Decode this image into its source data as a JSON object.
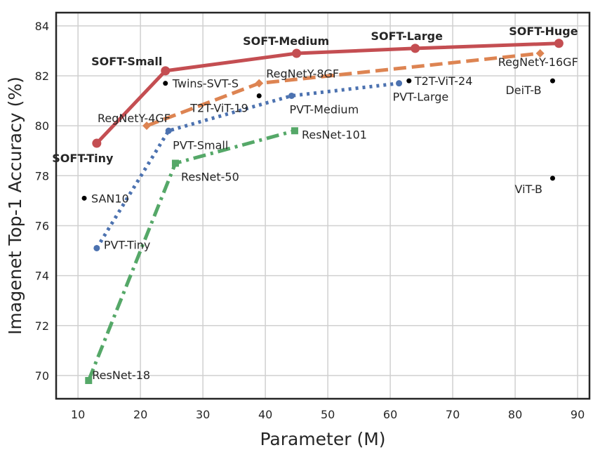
{
  "chart_data": {
    "type": "line",
    "title": "",
    "xlabel": "Parameter (M)",
    "ylabel": "Imagenet Top-1 Accuracy (%)",
    "xlim": [
      6.5,
      91.9
    ],
    "ylim": [
      69.07,
      84.53
    ],
    "xticks": [
      10,
      20,
      30,
      40,
      50,
      60,
      70,
      80,
      90
    ],
    "yticks": [
      70,
      72,
      74,
      76,
      78,
      80,
      82,
      84
    ],
    "grid": true,
    "legend": "none",
    "series": [
      {
        "color": "#c44e52",
        "style": "solid",
        "marker": "circle",
        "points": [
          {
            "x": 13,
            "y": 79.3,
            "label": "SOFT-Tiny"
          },
          {
            "x": 24,
            "y": 82.2,
            "label": "SOFT-Small"
          },
          {
            "x": 45,
            "y": 82.9,
            "label": "SOFT-Medium"
          },
          {
            "x": 64,
            "y": 83.1,
            "label": "SOFT-Large"
          },
          {
            "x": 87,
            "y": 83.3,
            "label": "SOFT-Huge"
          }
        ]
      },
      {
        "color": "#dd8452",
        "style": "dashed",
        "marker": "diamond",
        "points": [
          {
            "x": 21,
            "y": 80.0,
            "label": "RegNetY-4GF"
          },
          {
            "x": 39,
            "y": 81.7,
            "label": "RegNetY-8GF"
          },
          {
            "x": 84,
            "y": 82.9,
            "label": "RegNetY-16GF"
          }
        ]
      },
      {
        "color": "#4c72b0",
        "style": "dotted",
        "marker": "circle",
        "points": [
          {
            "x": 13,
            "y": 75.1,
            "label": "PVT-Tiny"
          },
          {
            "x": 24.5,
            "y": 79.8,
            "label": "PVT-Small"
          },
          {
            "x": 44.2,
            "y": 81.2,
            "label": "PVT-Medium"
          },
          {
            "x": 61.4,
            "y": 81.7,
            "label": "PVT-Large"
          }
        ]
      },
      {
        "color": "#55a868",
        "style": "dashdot",
        "marker": "square",
        "points": [
          {
            "x": 11.7,
            "y": 69.8,
            "label": "ResNet-18"
          },
          {
            "x": 25.6,
            "y": 78.5,
            "label": "ResNet-50"
          },
          {
            "x": 44.7,
            "y": 79.8,
            "label": "ResNet-101"
          }
        ]
      }
    ],
    "scatter": {
      "color": "#000000",
      "points": [
        {
          "x": 11,
          "y": 77.1,
          "label": "SAN10"
        },
        {
          "x": 24,
          "y": 81.7,
          "label": "Twins-SVT-S"
        },
        {
          "x": 39,
          "y": 81.2,
          "label": "T2T-ViT-19"
        },
        {
          "x": 63,
          "y": 81.8,
          "label": "T2T-ViT-24"
        },
        {
          "x": 86,
          "y": 81.8,
          "label": "DeiT-B"
        },
        {
          "x": 86,
          "y": 77.9,
          "label": "ViT-B"
        }
      ]
    }
  }
}
